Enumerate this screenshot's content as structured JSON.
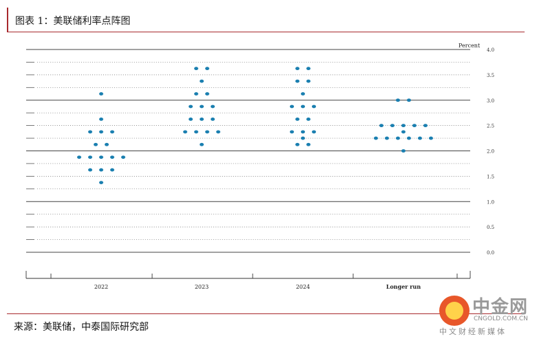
{
  "header": {
    "title": "图表 1：美联储利率点阵图"
  },
  "footer": {
    "source": "来源：美联储，中泰国际研究部"
  },
  "watermark": {
    "brand": "中金网",
    "site": "CNGOLD.COM.CN",
    "tagline": "中文财经新媒体"
  },
  "colors": {
    "dot": "#1a7fb0",
    "accent": "#a8282d",
    "axis": "#333333"
  },
  "chart_data": {
    "type": "scatter",
    "title": "",
    "xlabel": "",
    "ylabel": "Percent",
    "ylim": [
      0,
      4.0
    ],
    "y_ticks": [
      "0.0",
      "0.5",
      "1.0",
      "1.5",
      "2.0",
      "2.5",
      "3.0",
      "3.5",
      "4.0"
    ],
    "categories": [
      "2022",
      "2023",
      "2024",
      "Longer run"
    ],
    "grid": "dotted every 0.25, solid every 1.0",
    "dots": [
      {
        "category": "2022",
        "points": [
          [
            1.375,
            1
          ],
          [
            1.625,
            3
          ],
          [
            1.875,
            5
          ],
          [
            2.125,
            2
          ],
          [
            2.375,
            3
          ],
          [
            2.625,
            1
          ],
          [
            3.125,
            1
          ]
        ]
      },
      {
        "category": "2023",
        "points": [
          [
            2.125,
            1
          ],
          [
            2.375,
            4
          ],
          [
            2.625,
            3
          ],
          [
            2.875,
            3
          ],
          [
            3.125,
            2
          ],
          [
            3.375,
            1
          ],
          [
            3.625,
            2
          ]
        ]
      },
      {
        "category": "2024",
        "points": [
          [
            2.125,
            2
          ],
          [
            2.25,
            1
          ],
          [
            2.375,
            3
          ],
          [
            2.625,
            2
          ],
          [
            2.875,
            3
          ],
          [
            3.125,
            1
          ],
          [
            3.375,
            2
          ],
          [
            3.625,
            2
          ]
        ]
      },
      {
        "category": "Longer run",
        "points": [
          [
            2.0,
            1
          ],
          [
            2.25,
            6
          ],
          [
            2.375,
            1
          ],
          [
            2.5,
            5
          ],
          [
            3.0,
            2
          ]
        ]
      }
    ]
  }
}
